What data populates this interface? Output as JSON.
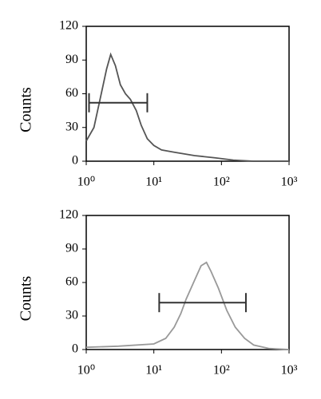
{
  "chart_data": [
    {
      "type": "line",
      "y_label": "Counts",
      "xscale": "log",
      "color": "#555555",
      "xlim": [
        1,
        1000
      ],
      "ylim": [
        0,
        120
      ],
      "xticks": [
        {
          "value": 1,
          "label": "10⁰"
        },
        {
          "value": 10,
          "label": "10¹"
        },
        {
          "value": 100,
          "label": "10²"
        },
        {
          "value": 1000,
          "label": "10³"
        }
      ],
      "yticks": [
        0,
        30,
        60,
        90,
        120
      ],
      "x": [
        1,
        1.3,
        1.6,
        2,
        2.3,
        2.7,
        3.2,
        3.8,
        4.5,
        5.5,
        6.5,
        8,
        10,
        13,
        20,
        40,
        80,
        150,
        300,
        1000
      ],
      "values": [
        18,
        30,
        55,
        82,
        95,
        85,
        68,
        60,
        55,
        45,
        32,
        20,
        14,
        10,
        8,
        5,
        3,
        1,
        0,
        0
      ],
      "gate": {
        "x": [
          1.1,
          8
        ],
        "y": 52
      }
    },
    {
      "type": "line",
      "y_label": "Counts",
      "xscale": "log",
      "color": "#999999",
      "xlim": [
        1,
        1000
      ],
      "ylim": [
        0,
        120
      ],
      "xticks": [
        {
          "value": 1,
          "label": "10⁰"
        },
        {
          "value": 10,
          "label": "10¹"
        },
        {
          "value": 100,
          "label": "10²"
        },
        {
          "value": 1000,
          "label": "10³"
        }
      ],
      "yticks": [
        0,
        30,
        60,
        90,
        120
      ],
      "x": [
        1,
        3,
        10,
        15,
        20,
        25,
        30,
        40,
        50,
        60,
        70,
        90,
        120,
        160,
        220,
        300,
        500,
        1000
      ],
      "values": [
        2,
        3,
        5,
        10,
        20,
        32,
        45,
        62,
        75,
        78,
        70,
        55,
        35,
        20,
        10,
        4,
        1,
        0
      ],
      "gate": {
        "x": [
          12,
          230
        ],
        "y": 42
      }
    }
  ]
}
